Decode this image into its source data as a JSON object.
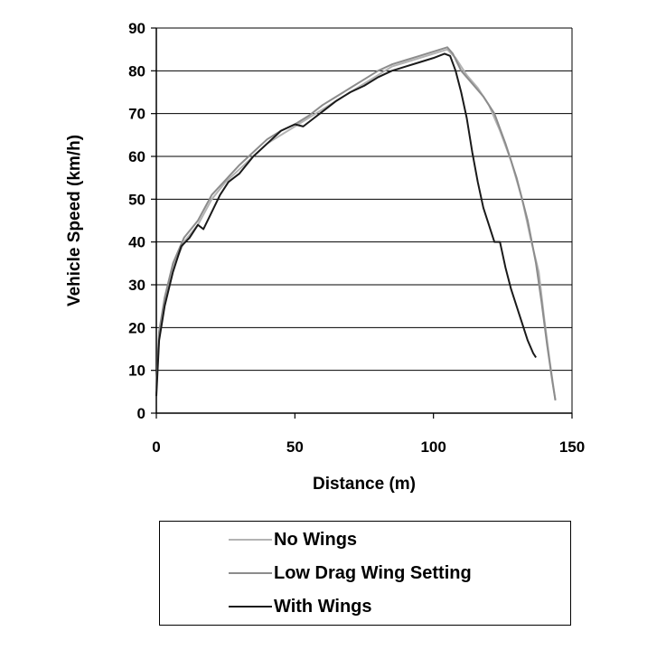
{
  "chart_data": {
    "type": "line",
    "title": "",
    "xlabel": "Distance (m)",
    "ylabel": "Vehicle Speed (km/h)",
    "xlim": [
      0,
      150
    ],
    "ylim": [
      0,
      90
    ],
    "xticks": [
      0,
      50,
      100,
      150
    ],
    "yticks": [
      0,
      10,
      20,
      30,
      40,
      50,
      60,
      70,
      80,
      90
    ],
    "grid": "horizontal",
    "legend_position": "bottom",
    "series": [
      {
        "name": "No Wings",
        "color": "#b3b3b3",
        "points": [
          [
            0,
            5
          ],
          [
            1,
            18
          ],
          [
            3,
            26
          ],
          [
            6,
            34
          ],
          [
            10,
            40
          ],
          [
            15,
            44
          ],
          [
            20,
            50
          ],
          [
            25,
            54
          ],
          [
            30,
            57
          ],
          [
            35,
            60
          ],
          [
            40,
            63
          ],
          [
            45,
            65
          ],
          [
            50,
            67
          ],
          [
            55,
            69
          ],
          [
            60,
            71
          ],
          [
            65,
            73
          ],
          [
            70,
            75
          ],
          [
            75,
            77
          ],
          [
            80,
            79
          ],
          [
            85,
            81
          ],
          [
            90,
            82
          ],
          [
            95,
            83
          ],
          [
            100,
            84
          ],
          [
            105,
            85
          ],
          [
            108,
            83
          ],
          [
            112,
            79
          ],
          [
            116,
            76
          ],
          [
            120,
            72
          ],
          [
            124,
            66
          ],
          [
            128,
            59
          ],
          [
            132,
            50
          ],
          [
            135,
            41
          ],
          [
            138,
            33
          ],
          [
            140,
            22
          ],
          [
            142,
            12
          ],
          [
            144,
            3
          ]
        ]
      },
      {
        "name": "Low Drag Wing Setting",
        "color": "#8c8c8c",
        "points": [
          [
            0,
            6
          ],
          [
            1,
            19
          ],
          [
            3,
            27
          ],
          [
            6,
            35
          ],
          [
            10,
            41
          ],
          [
            15,
            45
          ],
          [
            20,
            51
          ],
          [
            25,
            54.5
          ],
          [
            30,
            58
          ],
          [
            35,
            61
          ],
          [
            40,
            64
          ],
          [
            45,
            66
          ],
          [
            50,
            67.5
          ],
          [
            55,
            69.5
          ],
          [
            60,
            72
          ],
          [
            65,
            74
          ],
          [
            70,
            76
          ],
          [
            75,
            78
          ],
          [
            80,
            80
          ],
          [
            85,
            81.5
          ],
          [
            90,
            82.5
          ],
          [
            95,
            83.5
          ],
          [
            100,
            84.5
          ],
          [
            105,
            85.5
          ],
          [
            107,
            84
          ],
          [
            110,
            80
          ],
          [
            114,
            77
          ],
          [
            118,
            74
          ],
          [
            122,
            70
          ],
          [
            126,
            63
          ],
          [
            130,
            55
          ],
          [
            134,
            45
          ],
          [
            137,
            35
          ],
          [
            139,
            26
          ],
          [
            141,
            16
          ],
          [
            143,
            7
          ],
          [
            144,
            3
          ]
        ]
      },
      {
        "name": "With Wings",
        "color": "#1a1a1a",
        "points": [
          [
            0,
            4
          ],
          [
            1,
            17
          ],
          [
            3,
            25
          ],
          [
            6,
            33
          ],
          [
            9,
            39
          ],
          [
            12,
            41
          ],
          [
            15,
            44
          ],
          [
            17,
            43
          ],
          [
            20,
            47
          ],
          [
            23,
            51
          ],
          [
            26,
            54
          ],
          [
            30,
            56
          ],
          [
            35,
            60
          ],
          [
            40,
            63
          ],
          [
            45,
            66
          ],
          [
            50,
            67.5
          ],
          [
            53,
            67
          ],
          [
            56,
            68.5
          ],
          [
            60,
            70.5
          ],
          [
            65,
            73
          ],
          [
            70,
            75
          ],
          [
            75,
            76.5
          ],
          [
            80,
            78.5
          ],
          [
            85,
            80
          ],
          [
            90,
            81
          ],
          [
            95,
            82
          ],
          [
            100,
            83
          ],
          [
            104,
            84
          ],
          [
            106,
            83.5
          ],
          [
            108,
            80
          ],
          [
            110,
            75
          ],
          [
            112,
            69
          ],
          [
            114,
            61
          ],
          [
            116,
            54
          ],
          [
            118,
            48
          ],
          [
            120,
            44
          ],
          [
            122,
            40
          ],
          [
            124,
            40
          ],
          [
            126,
            34
          ],
          [
            128,
            29
          ],
          [
            130,
            25
          ],
          [
            132,
            21
          ],
          [
            134,
            17
          ],
          [
            136,
            14
          ],
          [
            137,
            13
          ]
        ]
      }
    ]
  }
}
